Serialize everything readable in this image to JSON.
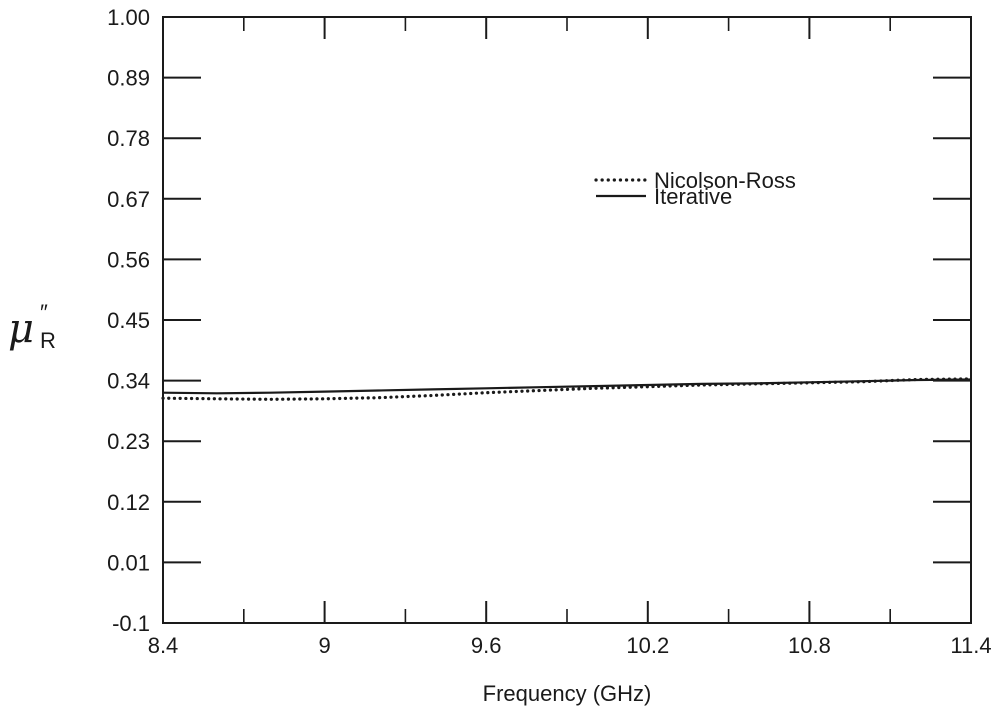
{
  "chart_data": {
    "type": "line",
    "title": "",
    "xlabel": "Frequency (GHz)",
    "ylabel": "μ",
    "ylabel_superscript": "″",
    "ylabel_subscript": "R",
    "xlim": [
      8.4,
      11.4
    ],
    "ylim": [
      -0.1,
      1.0
    ],
    "x_ticks": [
      8.4,
      9,
      9.6,
      10.2,
      10.8,
      11.4
    ],
    "x_tick_labels": [
      "8.4",
      "9",
      "9.6",
      "10.2",
      "10.8",
      "11.4"
    ],
    "y_ticks": [
      -0.1,
      0.01,
      0.12,
      0.23,
      0.34,
      0.45,
      0.56,
      0.67,
      0.78,
      0.89,
      1.0
    ],
    "y_tick_labels": [
      "-0.1",
      "0.01",
      "0.12",
      "0.23",
      "0.34",
      "0.45",
      "0.56",
      "0.67",
      "0.78",
      "0.89",
      "1.00"
    ],
    "grid": false,
    "legend_position": "upper-right",
    "series": [
      {
        "name": "Nicolson-Ross",
        "style": "dotted",
        "x": [
          8.4,
          8.6,
          8.8,
          9.0,
          9.2,
          9.4,
          9.6,
          9.8,
          10.0,
          10.2,
          10.4,
          10.6,
          10.8,
          11.0,
          11.2,
          11.4
        ],
        "y": [
          0.308,
          0.307,
          0.306,
          0.307,
          0.309,
          0.313,
          0.318,
          0.322,
          0.326,
          0.329,
          0.332,
          0.334,
          0.336,
          0.338,
          0.342,
          0.343
        ]
      },
      {
        "name": "Iterative",
        "style": "solid",
        "x": [
          8.4,
          8.6,
          8.8,
          9.0,
          9.2,
          9.4,
          9.6,
          9.8,
          10.0,
          10.2,
          10.4,
          10.6,
          10.8,
          11.0,
          11.2,
          11.4
        ],
        "y": [
          0.318,
          0.317,
          0.318,
          0.32,
          0.322,
          0.324,
          0.326,
          0.328,
          0.33,
          0.332,
          0.334,
          0.335,
          0.337,
          0.339,
          0.341,
          0.342
        ]
      }
    ]
  }
}
